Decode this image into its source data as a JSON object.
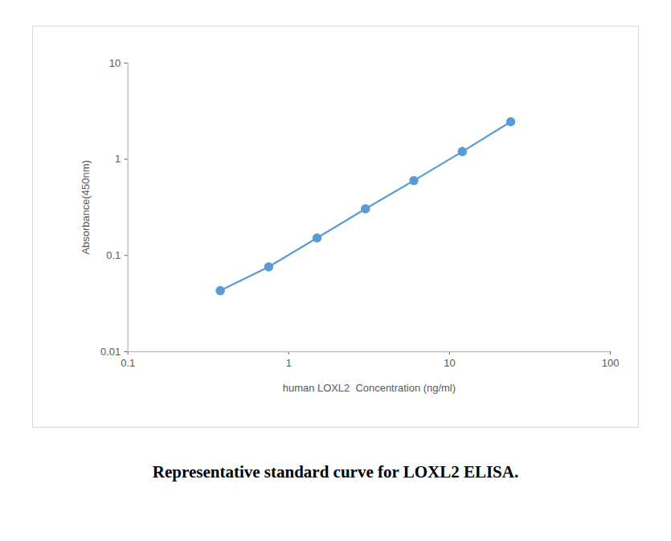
{
  "chart_data": {
    "type": "line",
    "title": "Representative standard curve for LOXL2 ELISA.",
    "x_label": "human LOXL2  Concentration (ng/ml)",
    "y_label": "Absorbance(450nm)",
    "x": [
      0.375,
      0.75,
      1.5,
      3,
      6,
      12,
      24
    ],
    "series": [
      {
        "name": "LOXL2",
        "color": "#5b9bd5",
        "marker": "circle",
        "line_style": "solid",
        "values": [
          0.043,
          0.076,
          0.152,
          0.305,
          0.6,
          1.2,
          2.45
        ]
      }
    ],
    "log": true,
    "xlim": [
      0.1,
      100
    ],
    "xticks": [
      0.1,
      1,
      10,
      100
    ],
    "ylim": [
      0.01,
      10
    ],
    "yticks": [
      0.01,
      0.1,
      1,
      10
    ],
    "grid": false
  }
}
